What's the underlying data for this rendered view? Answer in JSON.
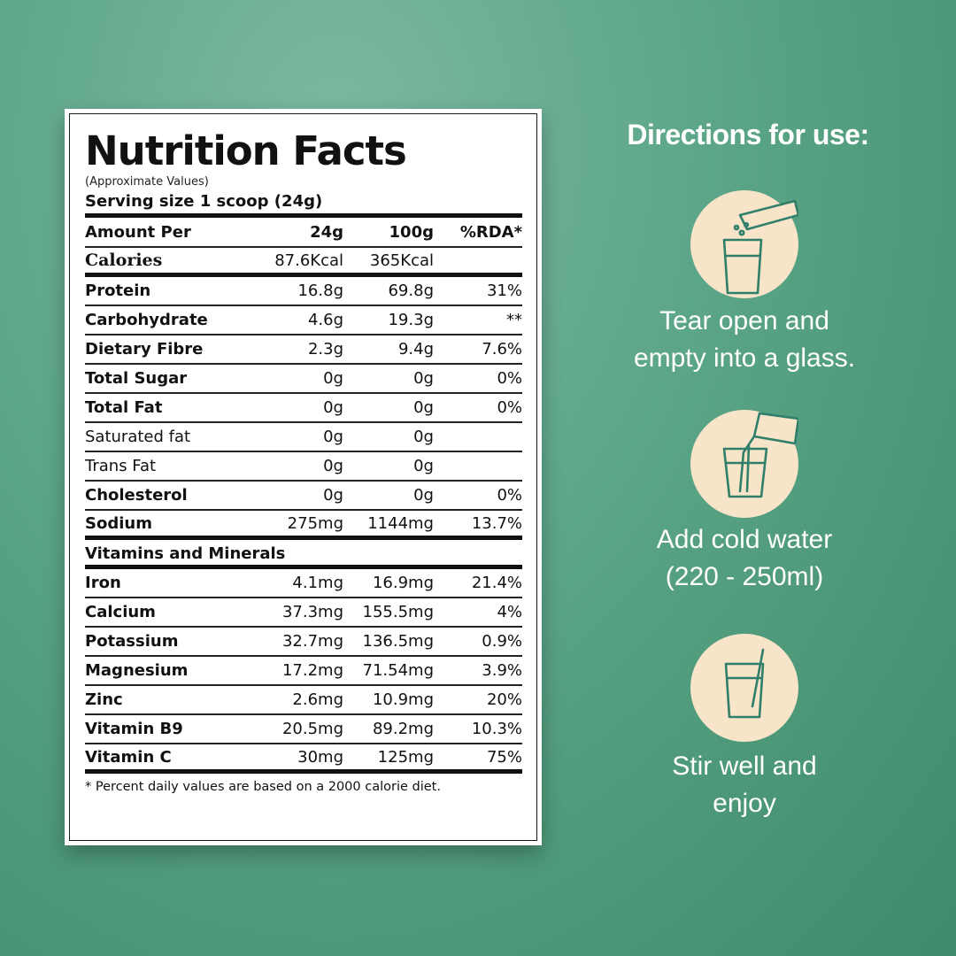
{
  "label": {
    "title": "Nutrition Facts",
    "subtitle": "(Approximate Values)",
    "serving": "Serving size 1 scoop (24g)",
    "header": {
      "name": "Amount Per",
      "col1": "24g",
      "col2": "100g",
      "col3": "%RDA*"
    },
    "calories": {
      "name": "Calories",
      "col1": "87.6Kcal",
      "col2": "365Kcal",
      "col3": ""
    },
    "nutrients": [
      {
        "name": "Protein",
        "col1": "16.8g",
        "col2": "69.8g",
        "col3": "31%",
        "bold": true
      },
      {
        "name": "Carbohydrate",
        "col1": "4.6g",
        "col2": "19.3g",
        "col3": "**",
        "bold": true
      },
      {
        "name": "Dietary Fibre",
        "col1": "2.3g",
        "col2": "9.4g",
        "col3": "7.6%",
        "bold": true
      },
      {
        "name": "Total Sugar",
        "col1": "0g",
        "col2": "0g",
        "col3": "0%",
        "bold": true
      },
      {
        "name": "Total Fat",
        "col1": "0g",
        "col2": "0g",
        "col3": "0%",
        "bold": true
      },
      {
        "name": "Saturated fat",
        "col1": "0g",
        "col2": "0g",
        "col3": "",
        "bold": false
      },
      {
        "name": "Trans Fat",
        "col1": "0g",
        "col2": "0g",
        "col3": "",
        "bold": false
      },
      {
        "name": "Cholesterol",
        "col1": "0g",
        "col2": "0g",
        "col3": "0%",
        "bold": true
      },
      {
        "name": "Sodium",
        "col1": "275mg",
        "col2": "1144mg",
        "col3": "13.7%",
        "bold": true
      }
    ],
    "section_title": "Vitamins and Minerals",
    "minerals": [
      {
        "name": "Iron",
        "col1": "4.1mg",
        "col2": "16.9mg",
        "col3": "21.4%"
      },
      {
        "name": "Calcium",
        "col1": "37.3mg",
        "col2": "155.5mg",
        "col3": "4%"
      },
      {
        "name": "Potassium",
        "col1": "32.7mg",
        "col2": "136.5mg",
        "col3": "0.9%"
      },
      {
        "name": "Magnesium",
        "col1": "17.2mg",
        "col2": "71.54mg",
        "col3": "3.9%"
      },
      {
        "name": "Zinc",
        "col1": "2.6mg",
        "col2": "10.9mg",
        "col3": "20%"
      },
      {
        "name": "Vitamin B9",
        "col1": "20.5mg",
        "col2": "89.2mg",
        "col3": "10.3%"
      },
      {
        "name": "Vitamin C",
        "col1": "30mg",
        "col2": "125mg",
        "col3": "75%"
      }
    ],
    "footnote": "* Percent daily values are based on a 2000 calorie diet."
  },
  "directions": {
    "title": "Directions for use:",
    "steps": [
      {
        "icon": "tear-open-sachet-icon",
        "line1": "Tear open and",
        "line2": "empty into a glass."
      },
      {
        "icon": "pour-water-icon",
        "line1": "Add cold water",
        "line2": "(220 - 250ml)"
      },
      {
        "icon": "stir-glass-icon",
        "line1": "Stir well and",
        "line2": "enjoy"
      }
    ]
  },
  "colors": {
    "background": "#5ea78a",
    "icon_circle": "#f8e5c9",
    "icon_stroke": "#2f7f6a",
    "text_light": "#ffffff"
  }
}
